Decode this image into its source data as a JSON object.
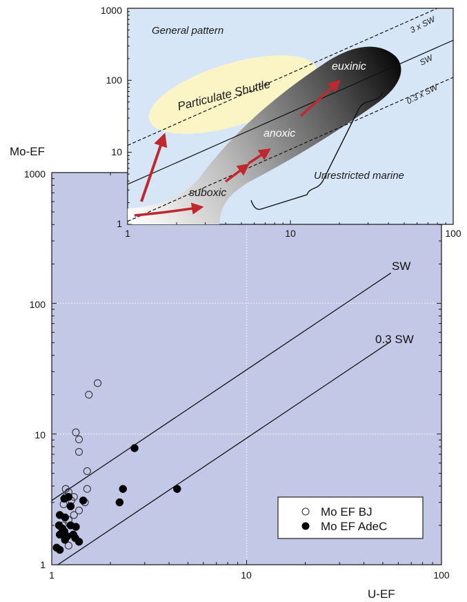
{
  "chart_data": [
    {
      "type": "scatter",
      "xlabel": "U-EF",
      "ylabel": "Mo-EF",
      "xscale": "log",
      "yscale": "log",
      "xlim": [
        1,
        100
      ],
      "ylim": [
        1,
        1000
      ],
      "xticks": [
        "1",
        "10",
        "100"
      ],
      "yticks": [
        "1",
        "10",
        "100",
        "1000"
      ],
      "grid": "dotted at decades",
      "background": "#c3c8e6",
      "legend_position": "bottom-right",
      "reference_lines": [
        {
          "label": "SW",
          "slope": 1,
          "mo_over_u": 3.1,
          "x_range": [
            1,
            55
          ]
        },
        {
          "label": "0.3 SW",
          "slope": 1,
          "mo_over_u": 0.93,
          "x_range": [
            1,
            55
          ]
        }
      ],
      "series": [
        {
          "name": "Mo EF BJ",
          "marker": "open-circle",
          "points": [
            [
              1.72,
              24.5
            ],
            [
              1.55,
              20.0
            ],
            [
              1.33,
              10.3
            ],
            [
              1.38,
              9.1
            ],
            [
              1.38,
              7.3
            ],
            [
              1.52,
              5.2
            ],
            [
              1.18,
              3.8
            ],
            [
              1.22,
              3.6
            ],
            [
              1.18,
              3.3
            ],
            [
              1.3,
              3.3
            ],
            [
              1.26,
              3.1
            ],
            [
              1.15,
              2.9
            ],
            [
              1.52,
              3.8
            ],
            [
              1.48,
              3.0
            ],
            [
              1.38,
              2.6
            ],
            [
              1.3,
              2.4
            ],
            [
              1.22,
              2.2
            ],
            [
              1.14,
              2.0
            ],
            [
              1.18,
              1.6
            ],
            [
              1.22,
              1.4
            ]
          ]
        },
        {
          "name": "Mo EF AdeC",
          "marker": "filled-circle",
          "points": [
            [
              2.66,
              7.8
            ],
            [
              2.32,
              3.8
            ],
            [
              4.4,
              3.8
            ],
            [
              2.23,
              3.0
            ],
            [
              1.45,
              3.1
            ],
            [
              1.16,
              3.2
            ],
            [
              1.22,
              3.3
            ],
            [
              1.25,
              2.8
            ],
            [
              1.1,
              2.4
            ],
            [
              1.17,
              2.3
            ],
            [
              1.09,
              2.0
            ],
            [
              1.13,
              1.9
            ],
            [
              1.25,
              2.0
            ],
            [
              1.33,
              1.95
            ],
            [
              1.1,
              1.7
            ],
            [
              1.16,
              1.8
            ],
            [
              1.2,
              1.65
            ],
            [
              1.29,
              1.7
            ],
            [
              1.32,
              1.6
            ],
            [
              1.17,
              1.55
            ],
            [
              1.38,
              1.5
            ],
            [
              1.06,
              1.35
            ],
            [
              1.1,
              1.3
            ]
          ]
        }
      ]
    },
    {
      "type": "diagram",
      "title": "General pattern",
      "xscale": "log",
      "yscale": "log",
      "xlim": [
        1,
        100
      ],
      "ylim": [
        1,
        1000
      ],
      "xticks": [
        "1",
        "10",
        "100"
      ],
      "yticks": [
        "1",
        "10",
        "100",
        "1000"
      ],
      "background": "#d6e6f7",
      "reference_lines": [
        {
          "label": "3 x SW",
          "slope": 1,
          "mo_over_u": 12.5
        },
        {
          "label": "SW",
          "slope": 1,
          "mo_over_u": 3.6
        },
        {
          "label": "0.3 x SW",
          "slope": 1,
          "mo_over_u": 1.1
        }
      ],
      "regions": [
        "Particulate Shuttle",
        "Unrestricted marine"
      ],
      "trend_labels": [
        "suboxic",
        "anoxic",
        "euxinic"
      ]
    }
  ],
  "main": {
    "xlabel": "U-EF",
    "ylabel": "Mo-EF",
    "xticks": [
      "1",
      "10",
      "100"
    ],
    "yticks": [
      "1",
      "10",
      "100",
      "1000"
    ],
    "line_labels": [
      "SW",
      "0.3 SW"
    ],
    "legend": [
      "Mo EF BJ",
      "Mo EF AdeC"
    ]
  },
  "inset": {
    "title": "General pattern",
    "xticks": [
      "1",
      "10",
      "100"
    ],
    "yticks": [
      "1",
      "10",
      "100",
      "1000"
    ],
    "line_labels": [
      "3 x SW",
      "SW",
      "0.3 x SW"
    ],
    "shuttle_label": "Particulate Shuttle",
    "marine_label": "Unrestricted marine",
    "stage_labels": [
      "suboxic",
      "anoxic",
      "euxinic"
    ]
  },
  "colors": {
    "main_bg": "#c3c8e6",
    "inset_bg": "#d6e6f7",
    "shuttle_fill": "#fbf5c6",
    "arrow": "#c0282d",
    "axis": "#111111",
    "grid": "#eef0f8"
  }
}
